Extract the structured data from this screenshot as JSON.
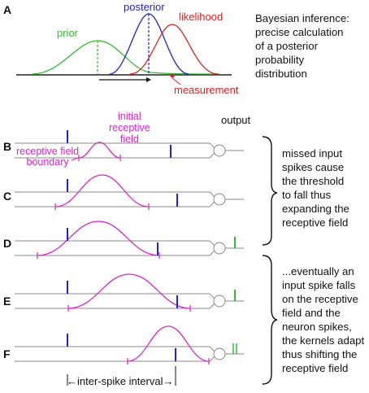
{
  "panels": {
    "a": {
      "letter": "A"
    },
    "b": {
      "letter": "B"
    },
    "c": {
      "letter": "C"
    },
    "d": {
      "letter": "D"
    },
    "e": {
      "letter": "E"
    },
    "f": {
      "letter": "F"
    }
  },
  "labels": {
    "prior": "prior",
    "posterior": "posterior",
    "likelihood": "likelihood",
    "measurement": "measurement",
    "initial_receptive_field": "initial\nreceptive\nfield",
    "receptive_field_boundary": "receptive field\nboundary",
    "output": "output",
    "inter_spike_interval": "←inter-spike interval→"
  },
  "captions": {
    "bayes": "Bayesian inference:\nprecise calculation\nof a posterior\nprobability\ndistribution",
    "missed": "missed input\nspikes cause\nthe threshold\nto fall thus\nexpanding the\nreceptive field",
    "eventual": "...eventually an\ninput spike falls\non the receptive\nfield and the\nneuron spikes,\nthe kernels adapt\nthus shifting the\nreceptive field"
  },
  "colors": {
    "prior": "#33bb33",
    "posterior": "#2222cc",
    "likelihood": "#dd2222",
    "receptive_field": "#dd22cc",
    "output_spike": "#33bb33",
    "line": "#888888"
  }
}
